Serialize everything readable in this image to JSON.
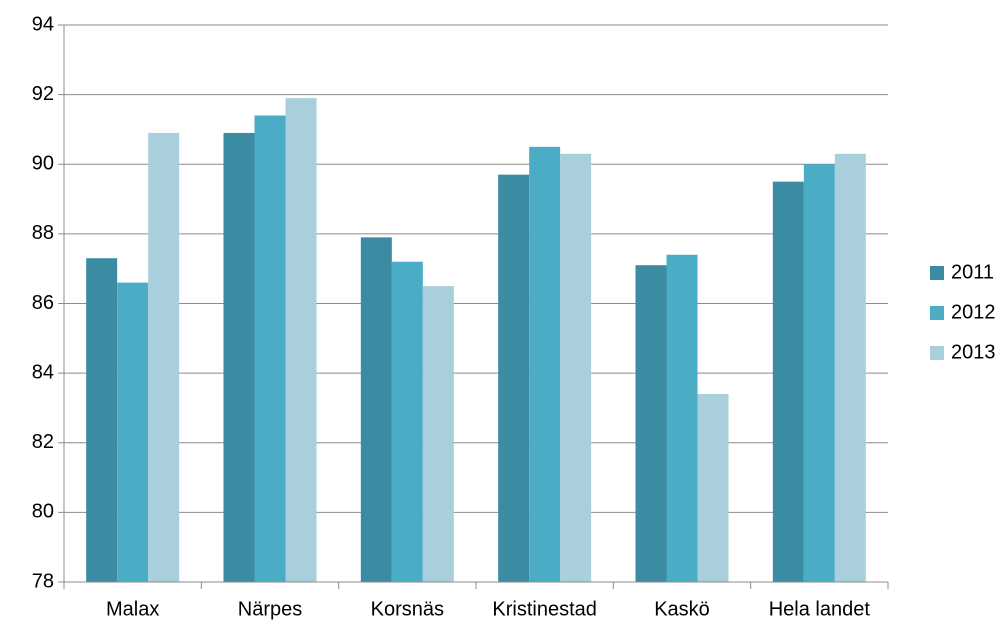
{
  "chart_data": {
    "type": "bar",
    "categories": [
      "Malax",
      "Närpes",
      "Korsnäs",
      "Kristinestad",
      "Kaskö",
      "Hela landet"
    ],
    "series": [
      {
        "name": "2011",
        "color": "#3b8ba3",
        "values": [
          87.3,
          90.9,
          87.9,
          89.7,
          87.1,
          89.5
        ]
      },
      {
        "name": "2012",
        "color": "#4bacc6",
        "values": [
          86.6,
          91.4,
          87.2,
          90.5,
          87.4,
          90.0
        ]
      },
      {
        "name": "2013",
        "color": "#a9cfdc",
        "values": [
          90.9,
          91.9,
          86.5,
          90.3,
          83.4,
          90.3
        ]
      }
    ],
    "ylim": [
      78,
      94
    ],
    "yticks": [
      78,
      80,
      82,
      84,
      86,
      88,
      90,
      92,
      94
    ],
    "grid": true,
    "legend": "right"
  }
}
